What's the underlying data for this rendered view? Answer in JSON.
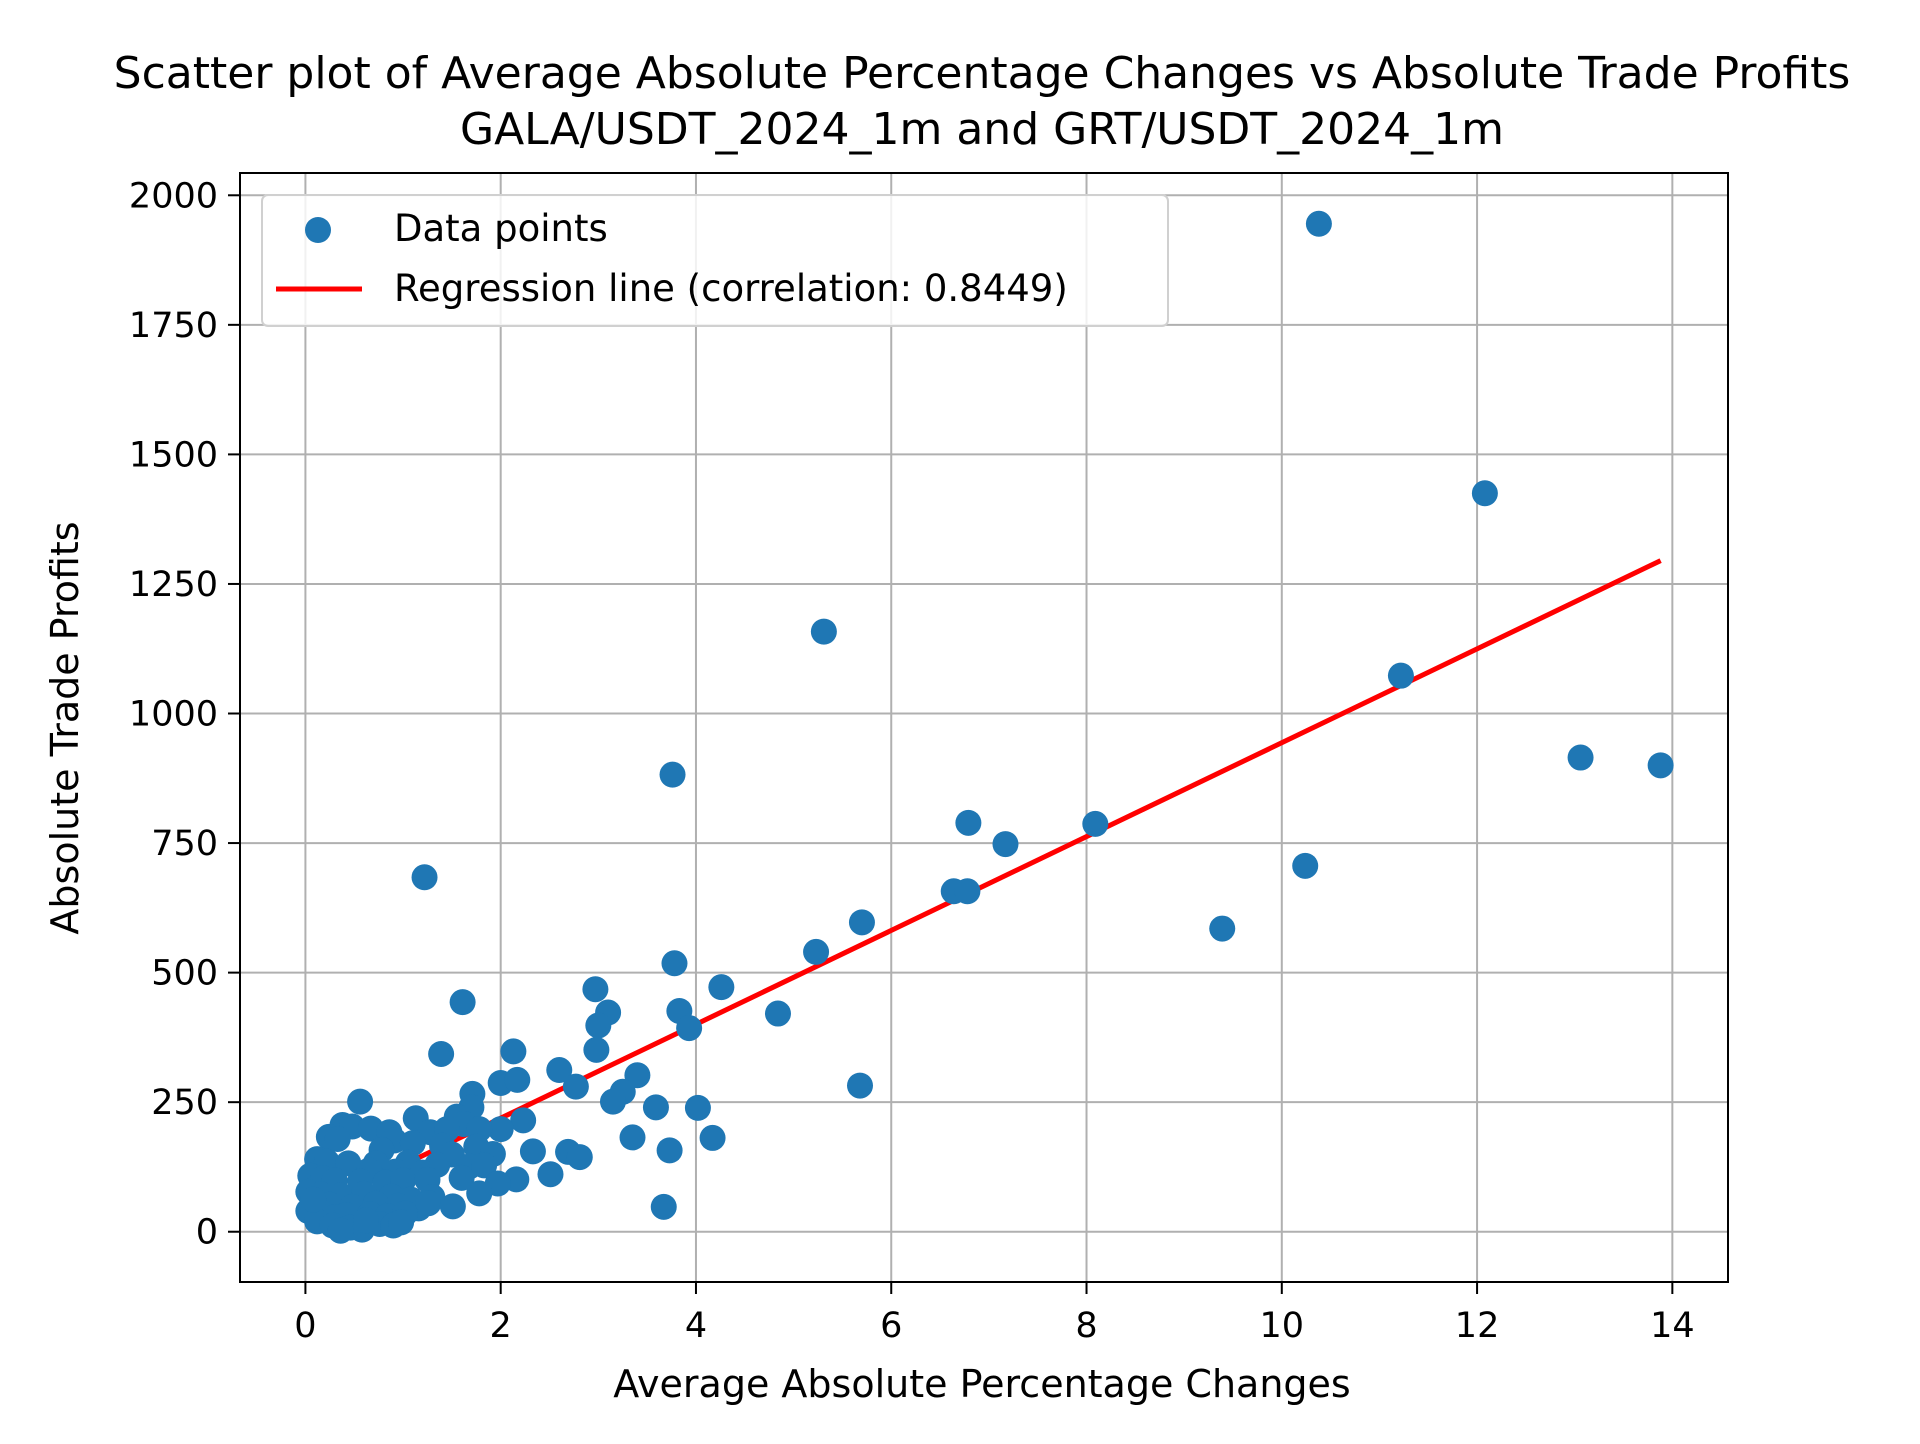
{
  "chart_data": {
    "type": "scatter",
    "title_lines": [
      "Scatter plot of Average Absolute Percentage Changes vs Absolute Trade Profits",
      "GALA/USDT_2024_1m and GRT/USDT_2024_1m"
    ],
    "xlabel": "Average Absolute Percentage Changes",
    "ylabel": "Absolute Trade Profits",
    "xlim": [
      -0.67,
      14.57
    ],
    "ylim": [
      -97,
      2043
    ],
    "x_ticks": [
      0,
      2,
      4,
      6,
      8,
      10,
      12,
      14
    ],
    "x_tick_labels": [
      "0",
      "2",
      "4",
      "6",
      "8",
      "10",
      "12",
      "14"
    ],
    "y_ticks": [
      0,
      250,
      500,
      750,
      1000,
      1250,
      1500,
      1750,
      2000
    ],
    "y_tick_labels": [
      "0",
      "250",
      "500",
      "750",
      "1000",
      "1250",
      "1500",
      "1750",
      "2000"
    ],
    "grid": true,
    "legend_position": "upper-left",
    "colors": {
      "points": "#1f77b4",
      "regression": "#ff0000",
      "grid": "#b0b0b0",
      "axes": "#000000"
    },
    "series": [
      {
        "name": "Data points",
        "type": "scatter",
        "points": [
          [
            10.38,
            1945
          ],
          [
            12.08,
            1425
          ],
          [
            5.31,
            1158
          ],
          [
            11.22,
            1073
          ],
          [
            13.06,
            915
          ],
          [
            13.88,
            900
          ],
          [
            3.76,
            882
          ],
          [
            6.79,
            789
          ],
          [
            8.09,
            787
          ],
          [
            7.17,
            748
          ],
          [
            10.24,
            706
          ],
          [
            6.64,
            657
          ],
          [
            6.78,
            657
          ],
          [
            1.22,
            684
          ],
          [
            5.7,
            597
          ],
          [
            9.39,
            585
          ],
          [
            5.23,
            540
          ],
          [
            3.78,
            518
          ],
          [
            4.26,
            472
          ],
          [
            2.97,
            468
          ],
          [
            1.61,
            443
          ],
          [
            3.83,
            426
          ],
          [
            4.84,
            421
          ],
          [
            3.1,
            423
          ],
          [
            3.0,
            398
          ],
          [
            3.93,
            393
          ],
          [
            2.98,
            351
          ],
          [
            1.39,
            343
          ],
          [
            2.13,
            348
          ],
          [
            2.6,
            312
          ],
          [
            3.4,
            302
          ],
          [
            1.71,
            266
          ],
          [
            2.0,
            287
          ],
          [
            2.17,
            293
          ],
          [
            2.77,
            280
          ],
          [
            5.68,
            282
          ],
          [
            3.25,
            270
          ],
          [
            3.15,
            251
          ],
          [
            0.56,
            251
          ],
          [
            1.7,
            240
          ],
          [
            3.59,
            240
          ],
          [
            4.02,
            239
          ],
          [
            1.13,
            219
          ],
          [
            1.55,
            222
          ],
          [
            2.23,
            215
          ],
          [
            1.62,
            208
          ],
          [
            0.38,
            206
          ],
          [
            0.48,
            203
          ],
          [
            0.67,
            199
          ],
          [
            0.86,
            192
          ],
          [
            1.28,
            192
          ],
          [
            1.45,
            198
          ],
          [
            2.0,
            198
          ],
          [
            1.78,
            198
          ],
          [
            0.24,
            183
          ],
          [
            0.33,
            179
          ],
          [
            3.35,
            182
          ],
          [
            4.17,
            181
          ],
          [
            0.91,
            176
          ],
          [
            1.1,
            171
          ],
          [
            1.4,
            166
          ],
          [
            1.75,
            164
          ],
          [
            0.78,
            158
          ],
          [
            3.73,
            157
          ],
          [
            2.33,
            155
          ],
          [
            2.69,
            154
          ],
          [
            2.81,
            144
          ],
          [
            1.5,
            149
          ],
          [
            1.92,
            150
          ],
          [
            0.12,
            140
          ],
          [
            0.22,
            135
          ],
          [
            0.44,
            132
          ],
          [
            0.72,
            132
          ],
          [
            1.05,
            133
          ],
          [
            1.35,
            129
          ],
          [
            1.68,
            126
          ],
          [
            1.83,
            128
          ],
          [
            0.65,
            118
          ],
          [
            0.92,
            116
          ],
          [
            1.2,
            114
          ],
          [
            0.05,
            108
          ],
          [
            0.18,
            103
          ],
          [
            0.3,
            99
          ],
          [
            0.56,
            97
          ],
          [
            0.82,
            95
          ],
          [
            1.0,
            99
          ],
          [
            1.25,
            100
          ],
          [
            1.6,
            104
          ],
          [
            2.16,
            101
          ],
          [
            2.51,
            111
          ],
          [
            1.97,
            93
          ],
          [
            0.03,
            77
          ],
          [
            0.16,
            72
          ],
          [
            0.36,
            70
          ],
          [
            0.6,
            73
          ],
          [
            0.88,
            68
          ],
          [
            1.08,
            62
          ],
          [
            1.3,
            67
          ],
          [
            1.78,
            74
          ],
          [
            0.1,
            55
          ],
          [
            0.25,
            52
          ],
          [
            0.48,
            48
          ],
          [
            0.72,
            54
          ],
          [
            0.95,
            50
          ],
          [
            1.16,
            45
          ],
          [
            1.26,
            55
          ],
          [
            1.51,
            49
          ],
          [
            3.67,
            48
          ],
          [
            0.03,
            40
          ],
          [
            0.18,
            36
          ],
          [
            0.3,
            28
          ],
          [
            0.42,
            32
          ],
          [
            0.66,
            34
          ],
          [
            0.84,
            30
          ],
          [
            1.02,
            35
          ],
          [
            0.12,
            20
          ],
          [
            0.28,
            12
          ],
          [
            0.46,
            8
          ],
          [
            0.58,
            4
          ],
          [
            0.76,
            15
          ],
          [
            0.9,
            12
          ],
          [
            0.98,
            18
          ],
          [
            0.36,
            2
          ],
          [
            0.62,
            22
          ],
          [
            0.08,
            62
          ]
        ]
      },
      {
        "name": "Regression line (correlation: 0.8449)",
        "type": "line",
        "x": [
          0.0,
          13.88
        ],
        "y": [
          38,
          1295
        ]
      }
    ]
  }
}
